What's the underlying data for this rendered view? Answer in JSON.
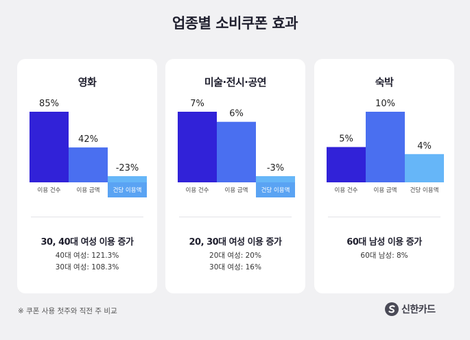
{
  "title": "업종별 소비쿠폰 효과",
  "colors": {
    "bar1": "#3122d8",
    "bar2": "#4a6ff0",
    "bar3": "#66b6f8",
    "label_bg": "#5aa3f3"
  },
  "chart_data": [
    {
      "type": "bar",
      "title": "영화",
      "categories": [
        "이용 건수",
        "이용 금액",
        "건당 이용액"
      ],
      "values": [
        85,
        42,
        -23
      ],
      "value_labels": [
        "85%",
        "42%",
        "-23%"
      ]
    },
    {
      "type": "bar",
      "title": "미술·전시·공연",
      "categories": [
        "이용 건수",
        "이용 금액",
        "건당 이용액"
      ],
      "values": [
        7,
        6,
        -3
      ],
      "value_labels": [
        "7%",
        "6%",
        "-3%"
      ]
    },
    {
      "type": "bar",
      "title": "숙박",
      "categories": [
        "이용 건수",
        "이용 금액",
        "건당 이용액"
      ],
      "values": [
        5,
        10,
        4
      ],
      "value_labels": [
        "5%",
        "10%",
        "4%"
      ]
    }
  ],
  "cards": [
    {
      "summary": "30, 40대 여성 이용 증가",
      "details": [
        "40대 여성: 121.3%",
        "30대 여성: 108.3%"
      ]
    },
    {
      "summary": "20, 30대 여성 이용 증가",
      "details": [
        "20대 여성: 20%",
        "30대 여성: 16%"
      ]
    },
    {
      "summary": "60대 남성 이용 증가",
      "details": [
        "60대 남성: 8%"
      ]
    }
  ],
  "footnote": "※ 쿠폰 사용 첫주와 직전 주 비교",
  "brand": {
    "name": "신한카드",
    "logo_icon": "shinhan-card-logo-icon"
  }
}
